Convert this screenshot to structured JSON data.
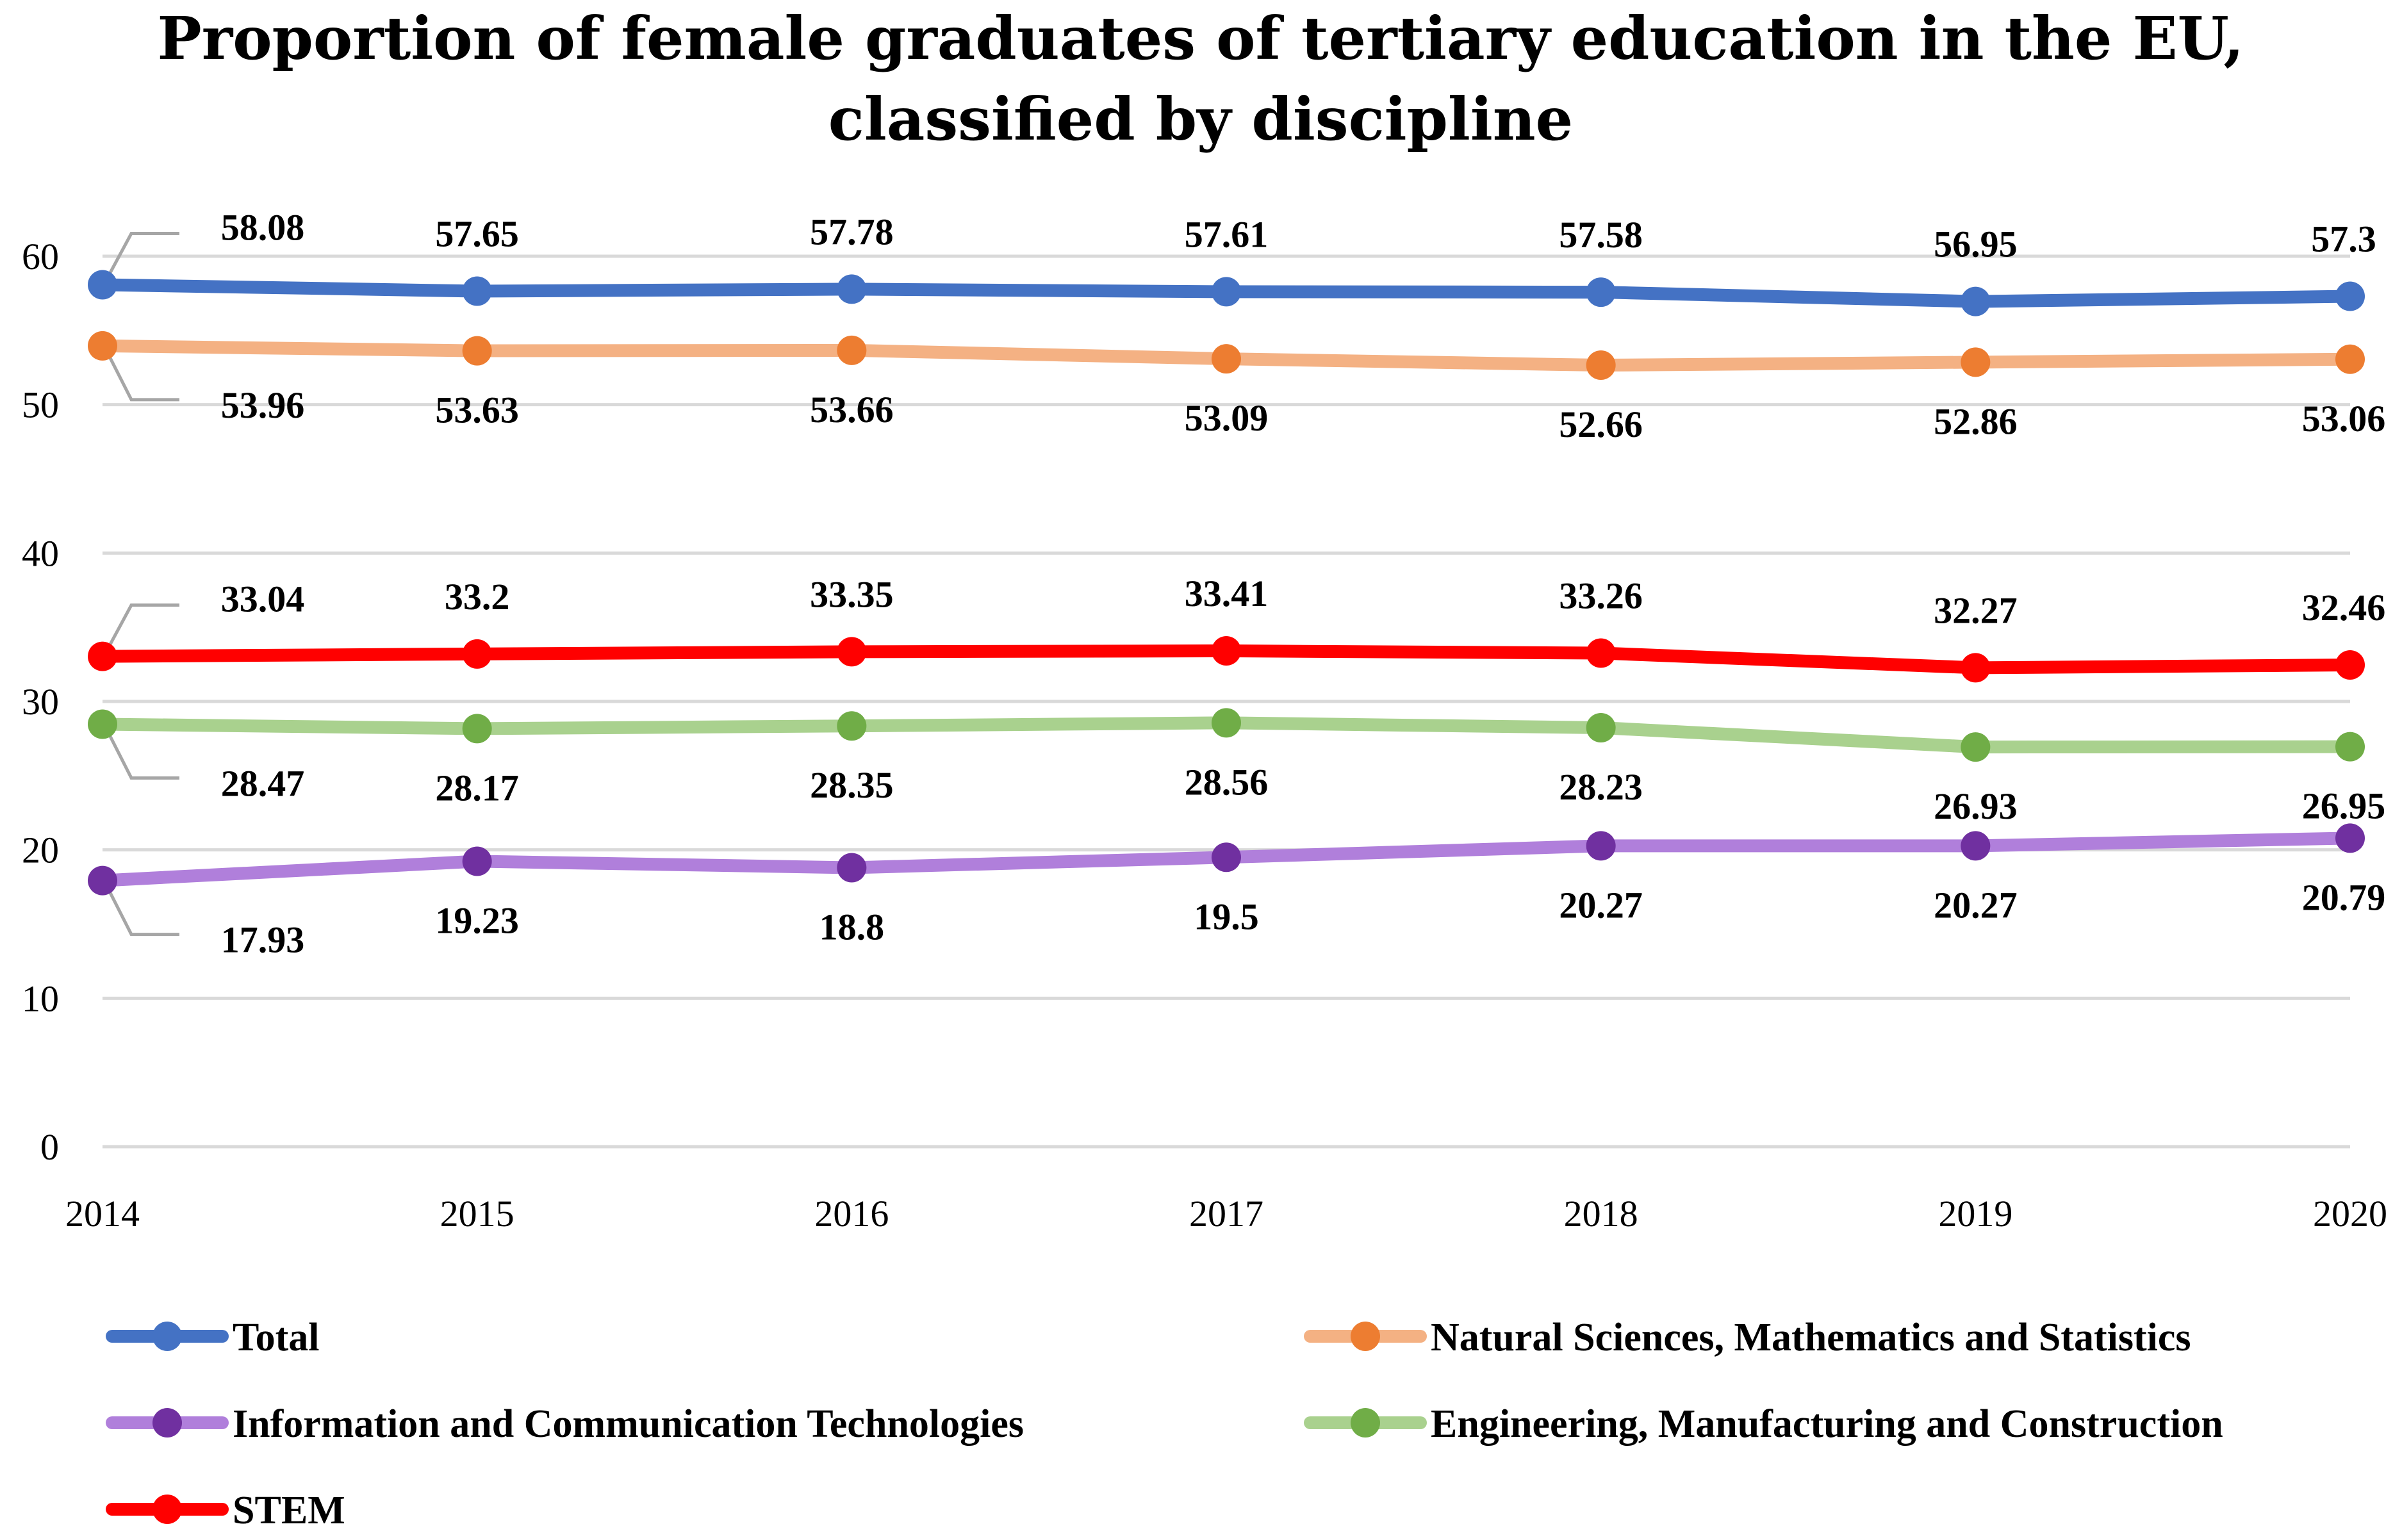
{
  "chart_data": {
    "type": "line",
    "title": "Proportion of female graduates of tertiary education in the EU, classified by discipline",
    "title_lines": [
      "Proportion of female graduates of tertiary education in the EU,",
      "classified by discipline"
    ],
    "xlabel": "",
    "ylabel": "",
    "x": [
      "2014",
      "2015",
      "2016",
      "2017",
      "2018",
      "2019",
      "2020"
    ],
    "ylim": [
      0,
      60
    ],
    "yticks": [
      0,
      10,
      20,
      30,
      40,
      50,
      60
    ],
    "grid": true,
    "legend_position": "bottom",
    "series": [
      {
        "key": "total",
        "name": "Total",
        "line_color": "#4472C4",
        "marker_color": "#4472C4",
        "values": [
          58.08,
          57.65,
          57.78,
          57.61,
          57.58,
          56.95,
          57.3
        ],
        "labels": [
          "58.08",
          "57.65",
          "57.78",
          "57.61",
          "57.58",
          "56.95",
          "57.3"
        ]
      },
      {
        "key": "natsci",
        "name": "Natural Sciences, Mathematics and Statistics",
        "line_color": "#F4B183",
        "marker_color": "#ED7D31",
        "values": [
          53.96,
          53.63,
          53.66,
          53.09,
          52.66,
          52.86,
          53.06
        ],
        "labels": [
          "53.96",
          "53.63",
          "53.66",
          "53.09",
          "52.66",
          "52.86",
          "53.06"
        ]
      },
      {
        "key": "ict",
        "name": "Information and Communication Technologies",
        "line_color": "#B07FDB",
        "marker_color": "#7030A0",
        "values": [
          17.93,
          19.23,
          18.8,
          19.5,
          20.27,
          20.27,
          20.79
        ],
        "labels": [
          "17.93",
          "19.23",
          "18.8",
          "19.5",
          "20.27",
          "20.27",
          "20.79"
        ]
      },
      {
        "key": "eng",
        "name": "Engineering, Manufacturing and Construction",
        "line_color": "#A9D18E",
        "marker_color": "#70AD47",
        "values": [
          28.47,
          28.17,
          28.35,
          28.56,
          28.23,
          26.93,
          26.95
        ],
        "labels": [
          "28.47",
          "28.17",
          "28.35",
          "28.56",
          "28.23",
          "26.93",
          "26.95"
        ]
      },
      {
        "key": "stem",
        "name": "STEM",
        "line_color": "#FF0000",
        "marker_color": "#FF0000",
        "values": [
          33.04,
          33.2,
          33.35,
          33.41,
          33.26,
          32.27,
          32.46
        ],
        "labels": [
          "33.04",
          "33.2",
          "33.35",
          "33.41",
          "33.26",
          "32.27",
          "32.46"
        ]
      }
    ]
  },
  "colors": {
    "gridline": "#D9D9D9",
    "leader_line": "#A6A6A6",
    "text": "#000000"
  }
}
